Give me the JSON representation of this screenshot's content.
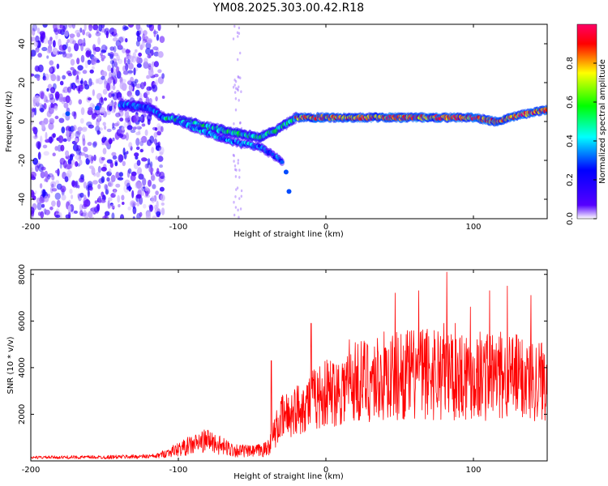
{
  "title": "YM08.2025.303.00.42.R18",
  "chart_data": [
    {
      "type": "heatmap",
      "name": "spectrogram",
      "xlabel": "Height of straight line (km)",
      "ylabel": "Frequency (Hz)",
      "xlim": [
        -200,
        150
      ],
      "ylim": [
        -50,
        50
      ],
      "xticks": [
        -200,
        -100,
        0,
        100
      ],
      "xtick_labels": [
        "-200",
        "-100",
        "0",
        "100"
      ],
      "yticks": [
        -40,
        -20,
        0,
        20,
        40
      ],
      "ytick_labels": [
        "-40",
        "-20",
        "0",
        "20",
        "40"
      ],
      "colorbar": {
        "label": "Normalized spectral amplitude",
        "range": [
          0.0,
          1.0
        ],
        "ticks": [
          0.0,
          0.2,
          0.4,
          0.6,
          0.8
        ],
        "tick_labels": [
          "0.0",
          "0.2",
          "0.4",
          "0.6",
          "0.8"
        ],
        "colormap": [
          "#ffffff",
          "#5500ff",
          "#0000ff",
          "#00ffff",
          "#00ff00",
          "#ffff00",
          "#ff0000",
          "#ff0066"
        ]
      },
      "features": {
        "noise_region_km": [
          -200,
          -110
        ],
        "trace_main": [
          [
            -140,
            9
          ],
          [
            -120,
            7
          ],
          [
            -110,
            2
          ],
          [
            -100,
            1
          ],
          [
            -80,
            -3
          ],
          [
            -60,
            -6
          ],
          [
            -45,
            -8
          ],
          [
            -35,
            -5
          ],
          [
            -20,
            2
          ],
          [
            0,
            2
          ],
          [
            50,
            2
          ],
          [
            100,
            2
          ],
          [
            115,
            0
          ],
          [
            130,
            3
          ],
          [
            150,
            6
          ]
        ],
        "trace_branch": [
          [
            -100,
            0
          ],
          [
            -80,
            -6
          ],
          [
            -60,
            -11
          ],
          [
            -45,
            -13
          ],
          [
            -30,
            -20
          ],
          [
            -25,
            -38
          ]
        ]
      }
    },
    {
      "type": "line",
      "name": "snr",
      "xlabel": "Height of straight line (km)",
      "ylabel": "SNR (10 * v/v)",
      "xlim": [
        -200,
        150
      ],
      "ylim": [
        0,
        8200
      ],
      "xticks": [
        -200,
        -100,
        0,
        100
      ],
      "xtick_labels": [
        "-200",
        "-100",
        "0",
        "100"
      ],
      "yticks": [
        2000,
        4000,
        6000,
        8000
      ],
      "ytick_labels": [
        "2000",
        "4000",
        "6000",
        "8000"
      ],
      "color": "#ff0000",
      "envelope": {
        "x": [
          -200,
          -150,
          -115,
          -100,
          -90,
          -80,
          -70,
          -60,
          -50,
          -40,
          -35,
          -30,
          -20,
          -10,
          0,
          10,
          20,
          30,
          40,
          50,
          60,
          70,
          80,
          90,
          100,
          110,
          120,
          130,
          140,
          150
        ],
        "base": [
          150,
          160,
          200,
          500,
          700,
          900,
          600,
          450,
          400,
          500,
          1200,
          1800,
          2200,
          2600,
          2900,
          3100,
          3400,
          3500,
          3600,
          3700,
          3700,
          3800,
          3900,
          3800,
          3700,
          3700,
          3600,
          3600,
          3500,
          3500
        ],
        "spread": [
          60,
          80,
          100,
          300,
          450,
          500,
          400,
          300,
          250,
          350,
          700,
          1000,
          1100,
          1300,
          1500,
          1600,
          1800,
          1900,
          2000,
          2000,
          2000,
          2100,
          2200,
          2100,
          2000,
          2000,
          1900,
          1900,
          1800,
          1800
        ]
      },
      "peaks": [
        [
          -37,
          4300
        ],
        [
          -10,
          5900
        ],
        [
          16,
          5200
        ],
        [
          47,
          7200
        ],
        [
          63,
          7300
        ],
        [
          82,
          8100
        ],
        [
          98,
          6600
        ],
        [
          111,
          7300
        ],
        [
          123,
          7500
        ],
        [
          139,
          7100
        ]
      ]
    }
  ]
}
